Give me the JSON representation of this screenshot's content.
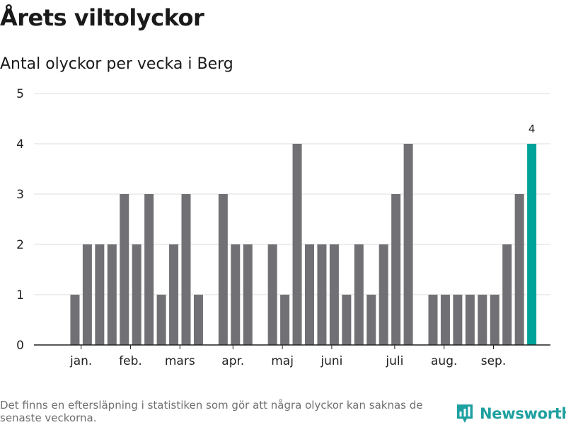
{
  "title": "Årets viltolyckor",
  "subtitle": "Antal olyckor per vecka i Berg",
  "footer_note": "Det finns en eftersläpning i statistiken som gör att några olyckor kan saknas de senaste veckorna.",
  "brand": {
    "name": "Newsworthy",
    "icon": "bar-chart-icon",
    "color": "#1fa0a0"
  },
  "colors": {
    "bar": "#717074",
    "highlight": "#00a39a",
    "grid": "#dddddd",
    "axis": "#222222"
  },
  "chart_data": {
    "type": "bar",
    "title": "Årets viltolyckor",
    "subtitle": "Antal olyckor per vecka i Berg",
    "xlabel": "",
    "ylabel": "",
    "ylim": [
      0,
      5
    ],
    "yticks": [
      0,
      1,
      2,
      3,
      4,
      5
    ],
    "grid": true,
    "values": [
      null,
      1,
      2,
      2,
      2,
      3,
      2,
      3,
      1,
      2,
      3,
      1,
      null,
      3,
      2,
      2,
      null,
      2,
      1,
      4,
      2,
      2,
      2,
      1,
      2,
      1,
      2,
      3,
      4,
      null,
      1,
      1,
      1,
      1,
      1,
      1,
      2,
      3,
      4
    ],
    "highlight_index": 38,
    "highlight_label": "4",
    "month_labels": [
      {
        "label": "jan.",
        "slot": 1.5
      },
      {
        "label": "feb.",
        "slot": 5.5
      },
      {
        "label": "mars",
        "slot": 9.5
      },
      {
        "label": "apr.",
        "slot": 13.8
      },
      {
        "label": "maj",
        "slot": 17.8
      },
      {
        "label": "juni",
        "slot": 21.8
      },
      {
        "label": "juli",
        "slot": 26.9
      },
      {
        "label": "aug.",
        "slot": 30.9
      },
      {
        "label": "sep.",
        "slot": 34.9
      }
    ]
  }
}
